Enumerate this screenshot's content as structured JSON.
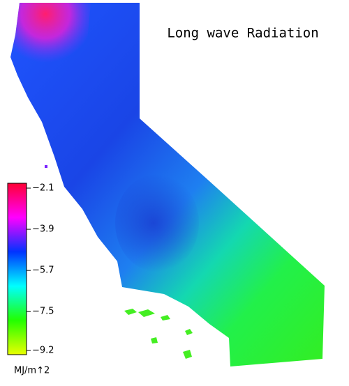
{
  "title": "Long wave Radiation",
  "colorbar": {
    "lim": [
      -9.2,
      -2.1
    ],
    "ticks": [
      {
        "value": -2.1,
        "label": "−2.1"
      },
      {
        "value": -3.9,
        "label": "−3.9"
      },
      {
        "value": -5.7,
        "label": "−5.7"
      },
      {
        "value": -7.5,
        "label": "−7.5"
      },
      {
        "value": -9.2,
        "label": "−9.2"
      }
    ],
    "colors": [
      "#e8ff00",
      "#22ff00",
      "#00ffff",
      "#0033ff",
      "#ff00ff",
      "#ff0033"
    ],
    "unit": "MJ/m↑2"
  }
}
